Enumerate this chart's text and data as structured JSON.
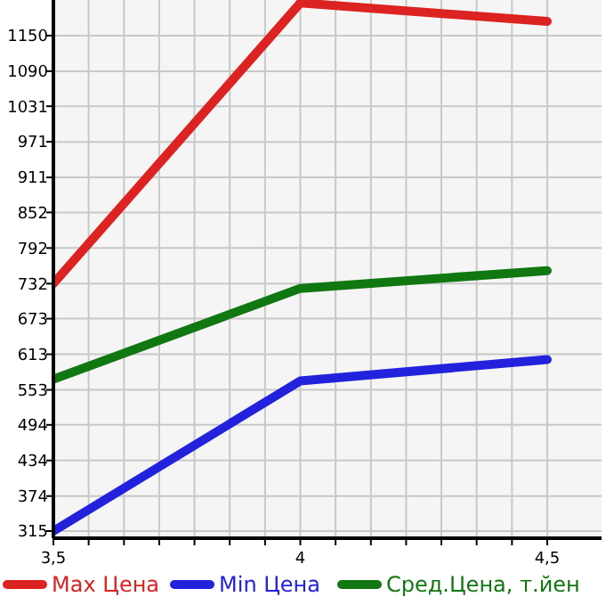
{
  "chart_data": {
    "type": "line",
    "x": [
      3.5,
      4,
      4.5
    ],
    "xlim": [
      3.5,
      4.61
    ],
    "xticks": [
      {
        "value": 3.5,
        "label": "3,5"
      },
      {
        "value": 3.5714,
        "label": null
      },
      {
        "value": 3.6429,
        "label": null
      },
      {
        "value": 3.7143,
        "label": null
      },
      {
        "value": 3.7857,
        "label": null
      },
      {
        "value": 3.8571,
        "label": null
      },
      {
        "value": 3.9286,
        "label": null
      },
      {
        "value": 4,
        "label": "4"
      },
      {
        "value": 4.0714,
        "label": null
      },
      {
        "value": 4.1429,
        "label": null
      },
      {
        "value": 4.2143,
        "label": null
      },
      {
        "value": 4.2857,
        "label": null
      },
      {
        "value": 4.3571,
        "label": null
      },
      {
        "value": 4.4286,
        "label": null
      },
      {
        "value": 4.5,
        "label": "4,5"
      }
    ],
    "ylim": [
      303,
      1210
    ],
    "yticks": [
      315,
      374,
      434,
      494,
      553,
      613,
      673,
      732,
      792,
      852,
      911,
      971,
      1031,
      1090,
      1150
    ],
    "grid": true,
    "legend": "bottom",
    "marker": "none",
    "series": [
      {
        "name": "Max Цена",
        "color": "#dd2222",
        "values": [
          732,
          1205,
          1174
        ]
      },
      {
        "name": "Min Цена",
        "color": "#2222dd",
        "values": [
          315,
          568,
          604
        ]
      },
      {
        "name": "Сред.Цена, т.йен",
        "color": "#117711",
        "values": [
          571,
          724,
          754
        ]
      }
    ]
  }
}
